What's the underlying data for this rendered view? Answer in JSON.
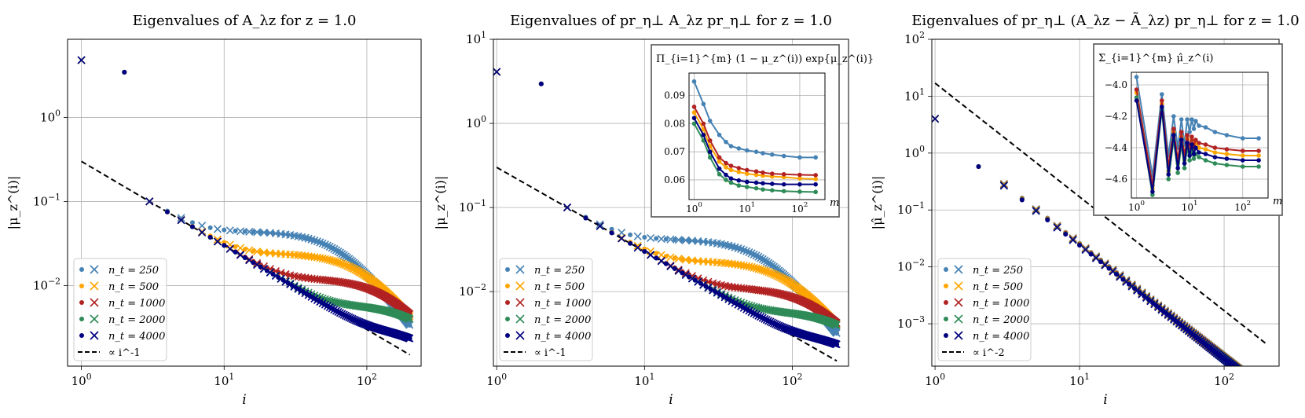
{
  "chart_data": [
    {
      "type": "scatter",
      "title": "Eigenvalues of A_λz for z = 1.0",
      "xlabel": "i",
      "ylabel": "|μ_z^(i)|",
      "xscale": "log",
      "yscale": "log",
      "xlim": [
        0.8,
        240
      ],
      "ylim": [
        0.0011,
        8.5
      ],
      "x_ticks": [
        1,
        10,
        100
      ],
      "x_tick_labels": [
        "10^0",
        "10^1",
        "10^2"
      ],
      "y_ticks": [
        0.01,
        0.1,
        1
      ],
      "y_tick_labels": [
        "10^-2",
        "10^-1",
        "10^0"
      ],
      "legend_position": "lower-left",
      "reference_line": {
        "label": "∝ i^-1",
        "coef": 0.3,
        "power": -1,
        "style": "dashed"
      },
      "series": [
        {
          "name": "n_t = 250",
          "color": "#4682b4",
          "top": 4.8,
          "low_power": -1,
          "low_coef": 0.3,
          "plateau": 0.044,
          "shoulder": 20,
          "knee": 70,
          "end_value": 0.0028,
          "crossover": 0.42,
          "end_drop": 1
        },
        {
          "name": "n_t = 500",
          "color": "#ffa500",
          "top": 4.8,
          "low_power": -1,
          "low_coef": 0.3,
          "plateau": 0.024,
          "shoulder": 25,
          "knee": 100,
          "end_value": 0.005,
          "crossover": 0.42,
          "end_drop": 0.5
        },
        {
          "name": "n_t = 1000",
          "color": "#b22222",
          "top": 4.8,
          "low_power": -1,
          "low_coef": 0.3,
          "plateau": 0.012,
          "shoulder": 40,
          "knee": 150,
          "end_value": 0.006,
          "crossover": 0.42,
          "end_drop": 0.3
        },
        {
          "name": "n_t = 2000",
          "color": "#2e8b57",
          "top": 4.8,
          "low_power": -1,
          "low_coef": 0.3,
          "plateau": 0.0058,
          "shoulder": 70,
          "knee": 250,
          "end_value": 0.0055,
          "crossover": 0.42,
          "end_drop": 0.1
        },
        {
          "name": "n_t = 4000",
          "color": "#000080",
          "top": 4.8,
          "low_power": -1,
          "low_coef": 0.3,
          "plateau": 0.003,
          "shoulder": 150,
          "knee": 300,
          "end_value": 0.0028,
          "crossover": 0.42,
          "end_drop": 0.2
        }
      ]
    },
    {
      "type": "scatter",
      "title": "Eigenvalues of pr_η⊥ A_λz pr_η⊥ for z = 1.0",
      "xlabel": "i",
      "ylabel": "|μ_z^(i)|",
      "xscale": "log",
      "yscale": "log",
      "xlim": [
        0.95,
        240
      ],
      "ylim": [
        0.0013,
        10
      ],
      "x_ticks": [
        1,
        10,
        100
      ],
      "x_tick_labels": [
        "10^0",
        "10^1",
        "10^2"
      ],
      "y_ticks": [
        0.01,
        0.1,
        1,
        10
      ],
      "y_tick_labels": [
        "10^-2",
        "10^-1",
        "10^0",
        "10^1"
      ],
      "legend_position": "lower-left",
      "reference_line": {
        "label": "∝ i^-1",
        "coef": 0.3,
        "power": -1,
        "style": "dashed"
      },
      "series": [
        {
          "name": "n_t = 250",
          "color": "#4682b4",
          "top": 4.1,
          "low_power": -1,
          "low_coef": 0.3,
          "plateau": 0.042,
          "shoulder": 20,
          "knee": 70,
          "end_value": 0.0025,
          "crossover": 0.45,
          "end_drop": 1
        },
        {
          "name": "n_t = 500",
          "color": "#ffa500",
          "top": 4.1,
          "low_power": -1,
          "low_coef": 0.3,
          "plateau": 0.023,
          "shoulder": 25,
          "knee": 100,
          "end_value": 0.0045,
          "crossover": 0.45,
          "end_drop": 0.5
        },
        {
          "name": "n_t = 1000",
          "color": "#b22222",
          "top": 4.1,
          "low_power": -1,
          "low_coef": 0.3,
          "plateau": 0.011,
          "shoulder": 40,
          "knee": 150,
          "end_value": 0.006,
          "crossover": 0.45,
          "end_drop": 0.3
        },
        {
          "name": "n_t = 2000",
          "color": "#2e8b57",
          "top": 4.1,
          "low_power": -1,
          "low_coef": 0.3,
          "plateau": 0.0058,
          "shoulder": 70,
          "knee": 250,
          "end_value": 0.0055,
          "crossover": 0.45,
          "end_drop": 0.1
        },
        {
          "name": "n_t = 4000",
          "color": "#000080",
          "top": 4.1,
          "low_power": -1,
          "low_coef": 0.3,
          "plateau": 0.003,
          "shoulder": 150,
          "knee": 300,
          "end_value": 0.003,
          "crossover": 0.45,
          "end_drop": 0.2
        }
      ],
      "inset": {
        "type": "line",
        "title": "Π_{i=1}^{m} (1 − μ_z^(i)) exp{μ_z^(i)}",
        "xlabel": "m",
        "xscale": "log",
        "xlim": [
          0.8,
          300
        ],
        "ylim": [
          0.053,
          0.098
        ],
        "x_ticks": [
          1,
          10,
          100
        ],
        "x_tick_labels": [
          "10^0",
          "10^1",
          "10^2"
        ],
        "y_ticks": [
          0.06,
          0.07,
          0.08,
          0.09
        ],
        "y_tick_labels": [
          "0.06",
          "0.07",
          "0.08",
          "0.09"
        ],
        "m": [
          1,
          1.5,
          2,
          3,
          4,
          5,
          7,
          10,
          15,
          20,
          30,
          50,
          100,
          200
        ],
        "series": [
          {
            "name": "n_t = 250",
            "color": "#4682b4",
            "values": [
              0.095,
              0.087,
              0.081,
              0.076,
              0.0735,
              0.072,
              0.0712,
              0.0705,
              0.07,
              0.0695,
              0.069,
              0.0685,
              0.068,
              0.068
            ]
          },
          {
            "name": "n_t = 500",
            "color": "#ffa500",
            "values": [
              0.084,
              0.078,
              0.072,
              0.0665,
              0.0645,
              0.0635,
              0.0628,
              0.0622,
              0.0618,
              0.0615,
              0.0612,
              0.061,
              0.0605,
              0.0603
            ]
          },
          {
            "name": "n_t = 1000",
            "color": "#b22222",
            "values": [
              0.086,
              0.08,
              0.074,
              0.068,
              0.066,
              0.065,
              0.0642,
              0.0635,
              0.063,
              0.0626,
              0.0622,
              0.062,
              0.0618,
              0.0617
            ]
          },
          {
            "name": "n_t = 2000",
            "color": "#2e8b57",
            "values": [
              0.08,
              0.074,
              0.068,
              0.062,
              0.06,
              0.059,
              0.058,
              0.0575,
              0.057,
              0.0566,
              0.0563,
              0.056,
              0.0558,
              0.0557
            ]
          },
          {
            "name": "n_t = 4000",
            "color": "#000080",
            "values": [
              0.082,
              0.076,
              0.07,
              0.064,
              0.0618,
              0.0605,
              0.0598,
              0.0593,
              0.059,
              0.0588,
              0.0586,
              0.0584,
              0.0584,
              0.0584
            ]
          }
        ]
      }
    },
    {
      "type": "scatter",
      "title": "Eigenvalues of pr_η⊥ (A_λz − Ã_λz) pr_η⊥ for z = 1.0",
      "xlabel": "i",
      "ylabel": "|μ̂_z^(i)|",
      "xscale": "log",
      "yscale": "log",
      "xlim": [
        0.95,
        240
      ],
      "ylim": [
        0.00018,
        100
      ],
      "x_ticks": [
        1,
        10,
        100
      ],
      "x_tick_labels": [
        "10^0",
        "10^1",
        "10^2"
      ],
      "y_ticks": [
        0.001,
        0.01,
        0.1,
        1,
        10,
        100
      ],
      "y_tick_labels": [
        "10^-3",
        "10^-2",
        "10^-1",
        "10^0",
        "10^1",
        "10^2"
      ],
      "legend_position": "lower-left",
      "reference_line": {
        "label": "∝ i^-2",
        "coef": 17,
        "power": -2,
        "style": "dashed"
      },
      "series": [
        {
          "name": "n_t = 250",
          "color": "#4682b4",
          "top": 4.0,
          "low_power": -2,
          "low_coef": 2.6,
          "plateau": 0,
          "shoulder": 0,
          "knee": 0,
          "end_value": 0.00032,
          "crossover": 0,
          "end_drop": 0
        },
        {
          "name": "n_t = 500",
          "color": "#ffa500",
          "top": 4.0,
          "low_power": -2,
          "low_coef": 2.55,
          "plateau": 0,
          "shoulder": 0,
          "knee": 0,
          "end_value": 0.0003,
          "crossover": 0,
          "end_drop": 0
        },
        {
          "name": "n_t = 1000",
          "color": "#b22222",
          "top": 4.0,
          "low_power": -2,
          "low_coef": 2.5,
          "plateau": 0,
          "shoulder": 0,
          "knee": 0,
          "end_value": 0.00028,
          "crossover": 0,
          "end_drop": 0
        },
        {
          "name": "n_t = 2000",
          "color": "#2e8b57",
          "top": 4.0,
          "low_power": -2,
          "low_coef": 2.45,
          "plateau": 0,
          "shoulder": 0,
          "knee": 0,
          "end_value": 0.00026,
          "crossover": 0,
          "end_drop": 0
        },
        {
          "name": "n_t = 4000",
          "color": "#000080",
          "top": 4.0,
          "low_power": -2,
          "low_coef": 2.4,
          "plateau": 0,
          "shoulder": 0,
          "knee": 0,
          "end_value": 0.00025,
          "crossover": 0,
          "end_drop": 0
        }
      ],
      "inset": {
        "type": "line",
        "title": "Σ_{i=1}^{m} μ̂_z^(i)",
        "xlabel": "m",
        "xscale": "log",
        "xlim": [
          0.8,
          300
        ],
        "ylim": [
          -4.72,
          -3.92
        ],
        "x_ticks": [
          1,
          10,
          100
        ],
        "x_tick_labels": [
          "10^0",
          "10^1",
          "10^2"
        ],
        "y_ticks": [
          -4.6,
          -4.4,
          -4.2,
          -4.0
        ],
        "y_tick_labels": [
          "−4.6",
          "−4.4",
          "−4.2",
          "−4.0"
        ],
        "m": [
          1,
          2,
          3,
          4,
          5,
          6,
          7,
          8,
          9,
          10,
          11,
          12,
          13,
          15,
          20,
          30,
          50,
          100,
          200
        ],
        "series": [
          {
            "name": "n_t = 250",
            "color": "#4682b4",
            "values": [
              -3.95,
              -4.58,
              -4.06,
              -4.45,
              -4.2,
              -4.4,
              -4.22,
              -4.38,
              -4.22,
              -4.3,
              -4.22,
              -4.28,
              -4.23,
              -4.26,
              -4.27,
              -4.3,
              -4.32,
              -4.34,
              -4.34
            ]
          },
          {
            "name": "n_t = 500",
            "color": "#ffa500",
            "values": [
              -4.05,
              -4.66,
              -4.12,
              -4.55,
              -4.3,
              -4.5,
              -4.33,
              -4.48,
              -4.34,
              -4.42,
              -4.35,
              -4.41,
              -4.37,
              -4.4,
              -4.41,
              -4.43,
              -4.44,
              -4.45,
              -4.45
            ]
          },
          {
            "name": "n_t = 1000",
            "color": "#b22222",
            "values": [
              -4.03,
              -4.64,
              -4.1,
              -4.52,
              -4.28,
              -4.48,
              -4.3,
              -4.45,
              -4.32,
              -4.4,
              -4.33,
              -4.39,
              -4.35,
              -4.37,
              -4.38,
              -4.4,
              -4.41,
              -4.42,
              -4.42
            ]
          },
          {
            "name": "n_t = 2000",
            "color": "#2e8b57",
            "values": [
              -4.08,
              -4.7,
              -4.16,
              -4.6,
              -4.35,
              -4.56,
              -4.38,
              -4.53,
              -4.4,
              -4.48,
              -4.42,
              -4.47,
              -4.44,
              -4.46,
              -4.48,
              -4.5,
              -4.51,
              -4.52,
              -4.52
            ]
          },
          {
            "name": "n_t = 4000",
            "color": "#000080",
            "values": [
              -4.1,
              -4.68,
              -4.14,
              -4.57,
              -4.32,
              -4.53,
              -4.35,
              -4.5,
              -4.37,
              -4.45,
              -4.38,
              -4.44,
              -4.4,
              -4.43,
              -4.44,
              -4.46,
              -4.47,
              -4.48,
              -4.48
            ]
          }
        ]
      }
    }
  ]
}
